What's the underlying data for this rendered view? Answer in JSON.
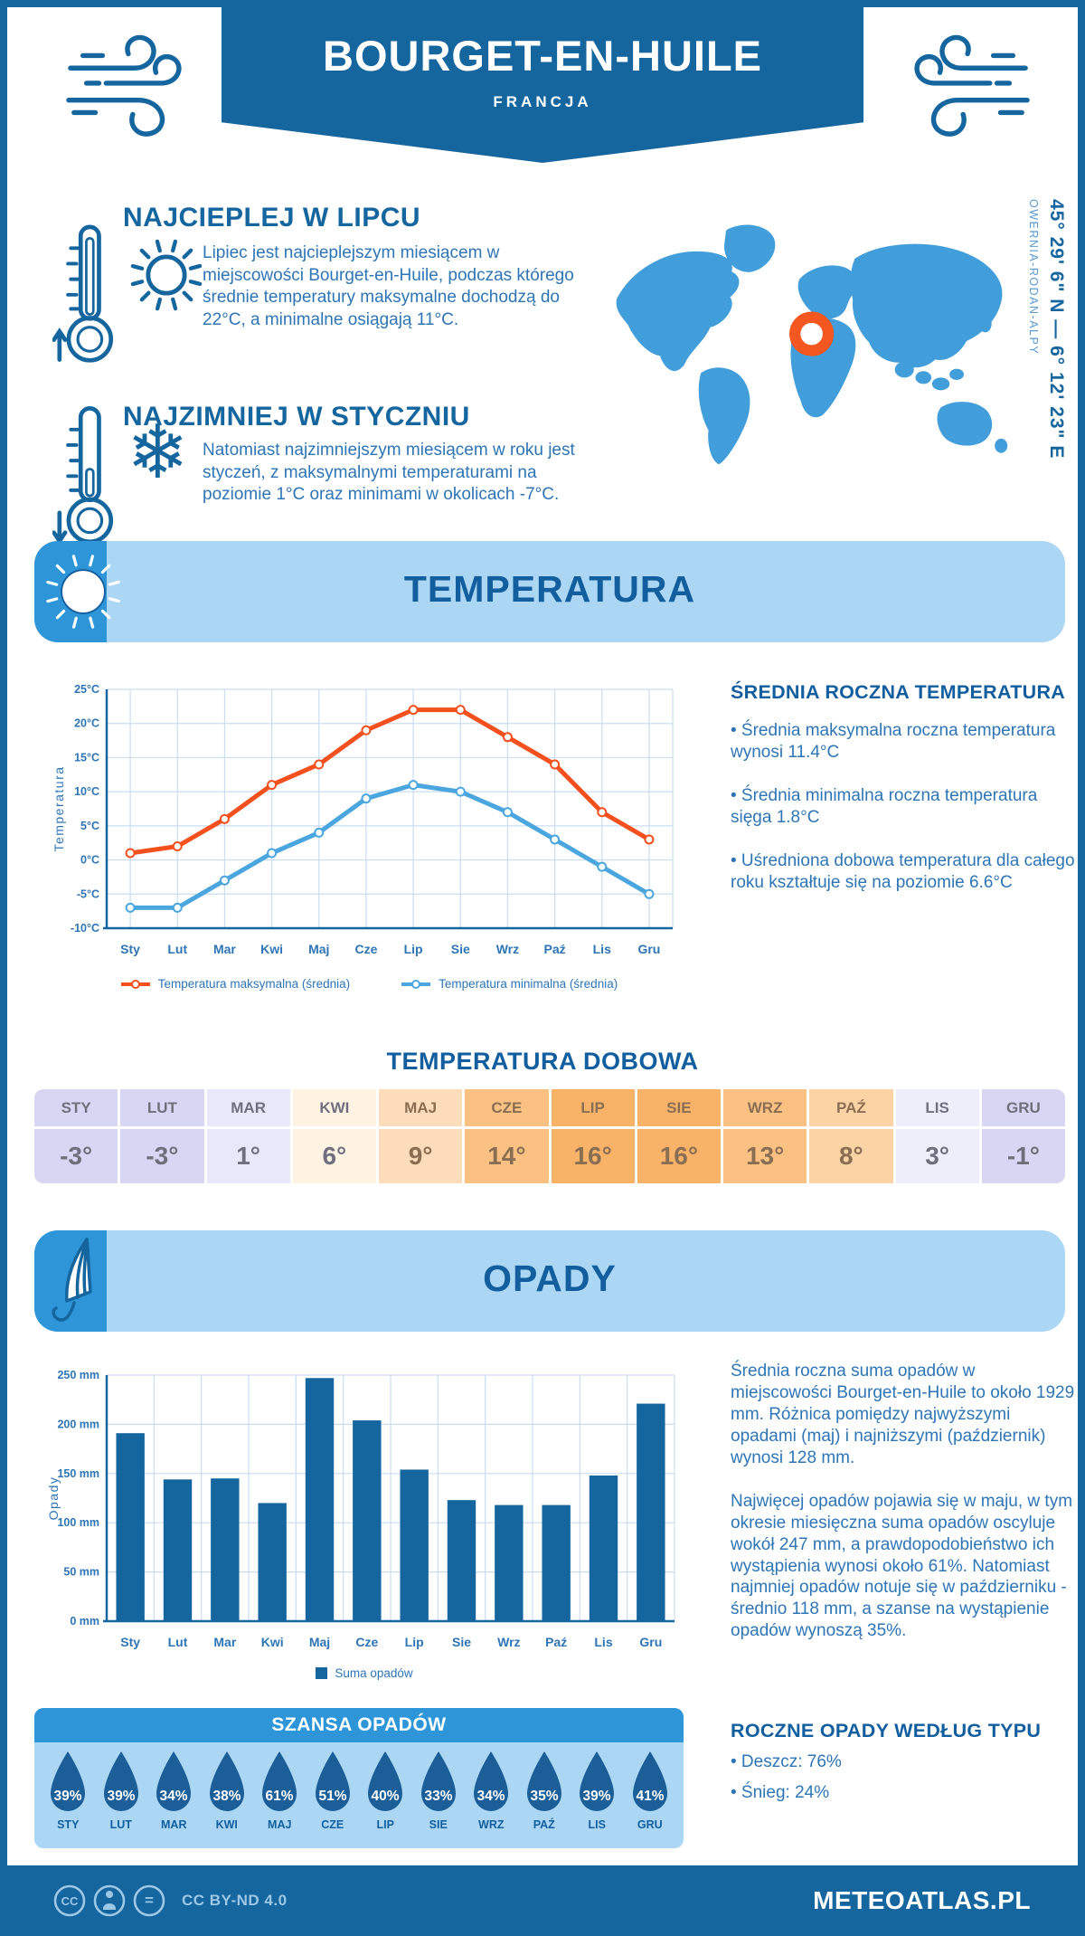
{
  "page": {
    "title": "BOURGET-EN-HUILE",
    "subtitle": "FRANCJA",
    "footer": {
      "license": "CC BY-ND 4.0",
      "brand": "METEOATLAS.PL"
    }
  },
  "location": {
    "coords": "45° 29' 6\" N — 6° 12' 23\" E",
    "region": "OWERNIA-RODAN-ALPY",
    "marker_color": "#F4571F",
    "map_color": "#419EDA"
  },
  "highlights": {
    "warmest": {
      "title": "NAJCIEPLEJ W LIPCU",
      "text": "Lipiec jest najcieplejszym miesiącem w miejscowości Bourget-en-Huile, podczas którego średnie temperatury maksymalne dochodzą do 22°C, a minimalne osiągają 11°C."
    },
    "coldest": {
      "title": "NAJZIMNIEJ W STYCZNIU",
      "text": "Natomiast najzimniejszym miesiącem w roku jest styczeń, z maksymalnymi temperaturami na poziomie 1°C oraz minimami w okolicach -7°C."
    }
  },
  "temperature_section": {
    "banner": "TEMPERATURA",
    "annual": {
      "heading": "ŚREDNIA ROCZNA TEMPERATURA",
      "bullets": [
        "• Średnia maksymalna roczna temperatura wynosi 11.4°C",
        "• Średnia minimalna roczna temperatura sięga 1.8°C",
        "• Uśredniona dobowa temperatura dla całego roku kształtuje się na poziomie 6.6°C"
      ]
    },
    "daily": {
      "heading": "TEMPERATURA DOBOWA",
      "months": [
        "STY",
        "LUT",
        "MAR",
        "KWI",
        "MAJ",
        "CZE",
        "LIP",
        "SIE",
        "WRZ",
        "PAŹ",
        "LIS",
        "GRU"
      ],
      "values": [
        "-3°",
        "-3°",
        "1°",
        "6°",
        "9°",
        "14°",
        "16°",
        "16°",
        "13°",
        "8°",
        "3°",
        "-1°"
      ],
      "cell_colors": [
        "#D7D7F4",
        "#D7D7F4",
        "#E8E8FA",
        "#FEF2E3",
        "#FCDCBA",
        "#FAC183",
        "#F9B369",
        "#F9B369",
        "#FAC183",
        "#FCD3A5",
        "#EEEEFA",
        "#D7D7F4"
      ],
      "cool_text_color": "#6F6F7E",
      "warm_text_color": "#8A6E52"
    }
  },
  "precipitation_section": {
    "banner": "OPADY",
    "paragraphs": [
      "Średnia roczna suma opadów w miejscowości Bourget-en-Huile to około 1929 mm. Różnica pomiędzy najwyższymi opadami (maj) i najniższymi (październik) wynosi 128 mm.",
      "Najwięcej opadów pojawia się w maju, w tym okresie miesięczna suma opadów oscyluje wokół 247 mm, a prawdopodobieństwo ich wystąpienia wynosi około 61%. Natomiast najmniej opadów notuje się w październiku - średnio 118 mm, a szanse na wystąpienie opadów wynoszą 35%."
    ],
    "by_type": {
      "heading": "ROCZNE OPADY WEDŁUG TYPU",
      "bullets": [
        "• Deszcz: 76%",
        "• Śnieg: 24%"
      ]
    },
    "chance": {
      "heading": "SZANSA OPADÓW",
      "months": [
        "STY",
        "LUT",
        "MAR",
        "KWI",
        "MAJ",
        "CZE",
        "LIP",
        "SIE",
        "WRZ",
        "PAŹ",
        "LIS",
        "GRU"
      ],
      "values": [
        "39%",
        "39%",
        "34%",
        "38%",
        "61%",
        "51%",
        "40%",
        "33%",
        "34%",
        "35%",
        "39%",
        "41%"
      ],
      "drop_color": "#1B5E98"
    }
  },
  "chart_data": [
    {
      "type": "line",
      "categories": [
        "Sty",
        "Lut",
        "Mar",
        "Kwi",
        "Maj",
        "Cze",
        "Lip",
        "Sie",
        "Wrz",
        "Paź",
        "Lis",
        "Gru"
      ],
      "series": [
        {
          "name": "Temperatura maksymalna (średnia)",
          "color": "#F4501E",
          "values": [
            1,
            2,
            6,
            11,
            14,
            19,
            22,
            22,
            18,
            14,
            7,
            3
          ]
        },
        {
          "name": "Temperatura minimalna (średnia)",
          "color": "#4BA6DF",
          "values": [
            -7,
            -7,
            -3,
            1,
            4,
            9,
            11,
            10,
            7,
            3,
            -1,
            -5
          ]
        }
      ],
      "xlabel": "",
      "ylabel": "Temperatura",
      "ylim": [
        -10,
        25
      ],
      "ytick_step": 5,
      "ytick_suffix": "°C",
      "grid": true,
      "legend_position": "bottom"
    },
    {
      "type": "bar",
      "categories": [
        "Sty",
        "Lut",
        "Mar",
        "Kwi",
        "Maj",
        "Cze",
        "Lip",
        "Sie",
        "Wrz",
        "Paź",
        "Lis",
        "Gru"
      ],
      "series": [
        {
          "name": "Suma opadów",
          "color": "#15659F",
          "values": [
            191,
            144,
            145,
            120,
            247,
            204,
            154,
            123,
            118,
            118,
            148,
            221
          ]
        }
      ],
      "xlabel": "",
      "ylabel": "Opady",
      "ylim": [
        0,
        250
      ],
      "ytick_step": 50,
      "ytick_suffix": " mm",
      "grid": true,
      "legend_position": "bottom"
    }
  ],
  "theme": {
    "primary": "#15659F",
    "body_text": "#2E75B5",
    "panel": "#ABD7F5",
    "strip": "#2E96D8",
    "grid": "#C9DEF0",
    "footer_accent": "#9CC8E8"
  }
}
